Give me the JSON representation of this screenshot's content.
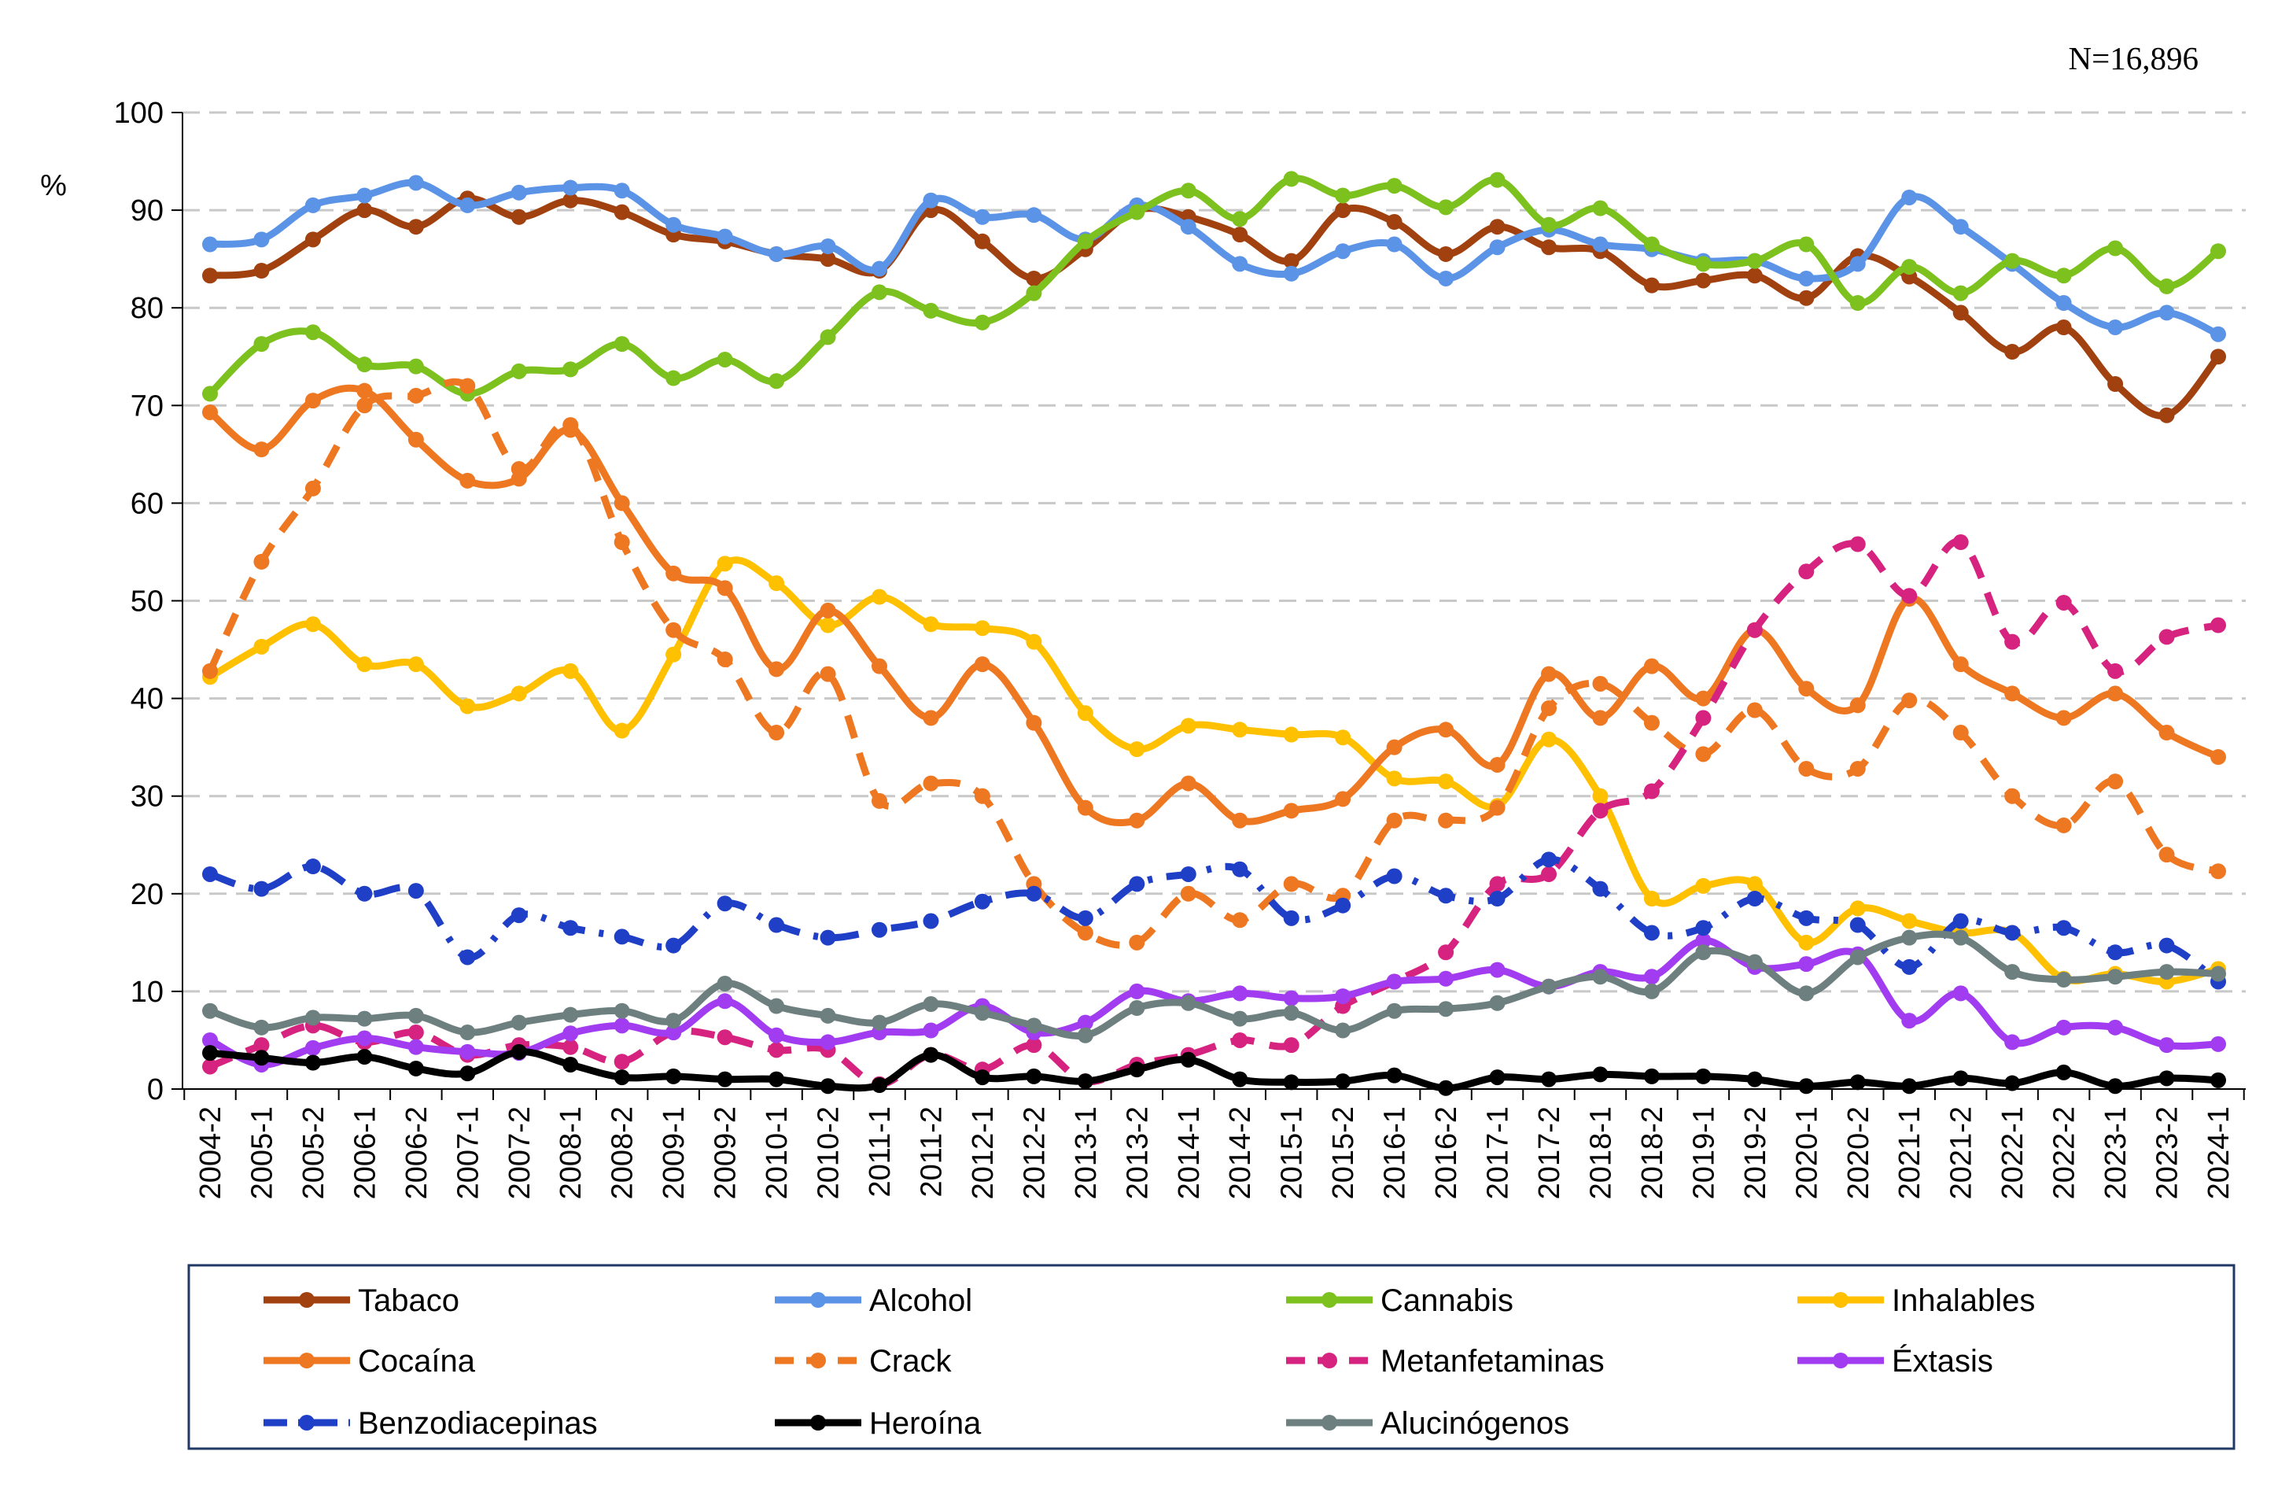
{
  "chart_data": {
    "type": "line",
    "note": "N=16,896",
    "ylabel": "%",
    "ylim": [
      0,
      100
    ],
    "yticks": [
      0,
      10,
      20,
      30,
      40,
      50,
      60,
      70,
      80,
      90,
      100
    ],
    "grid": "horizontal dashed",
    "legend_position": "bottom",
    "categories": [
      "2004-2",
      "2005-1",
      "2005-2",
      "2006-1",
      "2006-2",
      "2007-1",
      "2007-2",
      "2008-1",
      "2008-2",
      "2009-1",
      "2009-2",
      "2010-1",
      "2010-2",
      "2011-1",
      "2011-2",
      "2012-1",
      "2012-2",
      "2013-1",
      "2013-2",
      "2014-1",
      "2014-2",
      "2015-1",
      "2015-2",
      "2016-1",
      "2016-2",
      "2017-1",
      "2017-2",
      "2018-1",
      "2018-2",
      "2019-1",
      "2019-2",
      "2020-1",
      "2020-2",
      "2021-1",
      "2021-2",
      "2022-1",
      "2022-2",
      "2023-1",
      "2023-2",
      "2024-1"
    ],
    "series": [
      {
        "name": "Tabaco",
        "color": "#A0410F",
        "dash": "solid",
        "values": [
          83.3,
          83.8,
          87,
          90,
          88.3,
          91.2,
          89.3,
          91,
          89.8,
          87.5,
          86.8,
          85.5,
          85,
          83.8,
          90,
          86.8,
          83,
          86,
          90,
          89.3,
          87.5,
          84.8,
          90,
          88.8,
          85.5,
          88.3,
          86.2,
          85.8,
          82.3,
          82.8,
          83.3,
          81,
          85.3,
          83.2,
          79.5,
          75.5,
          78,
          72.2,
          69,
          75
        ]
      },
      {
        "name": "Alcohol",
        "color": "#5B93E6",
        "dash": "solid",
        "values": [
          86.5,
          87,
          90.5,
          91.5,
          92.8,
          90.5,
          91.8,
          92.3,
          92,
          88.5,
          87.3,
          85.5,
          86.3,
          84,
          91,
          89.3,
          89.5,
          87,
          90.5,
          88.3,
          84.5,
          83.5,
          85.8,
          86.5,
          83,
          86.2,
          88,
          86.5,
          86,
          84.8,
          84.8,
          83,
          84.5,
          91.3,
          88.3,
          84.5,
          80.5,
          78,
          79.5,
          77.3
        ]
      },
      {
        "name": "Cannabis",
        "color": "#7CC11E",
        "dash": "solid",
        "values": [
          71.2,
          76.3,
          77.5,
          74.2,
          74,
          71.2,
          73.5,
          73.7,
          76.3,
          72.8,
          74.7,
          72.5,
          77,
          81.6,
          79.7,
          78.5,
          81.5,
          86.8,
          89.8,
          92,
          89.1,
          93.2,
          91.5,
          92.5,
          90.3,
          93.1,
          88.5,
          90.2,
          86.5,
          84.5,
          84.8,
          86.5,
          80.5,
          84.2,
          81.5,
          84.8,
          83.3,
          86.1,
          82.2,
          85.8
        ]
      },
      {
        "name": "Inhalables",
        "color": "#FFC000",
        "dash": "solid",
        "values": [
          42.2,
          45.3,
          47.6,
          43.5,
          43.5,
          39.2,
          40.5,
          42.8,
          36.7,
          44.5,
          53.8,
          51.8,
          47.5,
          50.4,
          47.6,
          47.2,
          45.8,
          38.5,
          34.8,
          37.2,
          36.8,
          36.3,
          36,
          31.8,
          31.5,
          29,
          35.8,
          30,
          19.5,
          20.8,
          21,
          15,
          18.5,
          17.2,
          16,
          16,
          11.3,
          11.8,
          11,
          12.3
        ]
      },
      {
        "name": "Cocaína",
        "color": "#EE7722",
        "dash": "solid",
        "values": [
          69.3,
          65.5,
          70.5,
          71.5,
          66.5,
          62.3,
          62.5,
          67.5,
          60,
          52.8,
          51.3,
          43,
          49,
          43.3,
          38,
          43.5,
          37.5,
          28.8,
          27.5,
          31.3,
          27.5,
          28.5,
          29.7,
          35,
          36.8,
          33.2,
          42.5,
          38,
          43.3,
          40,
          47,
          41,
          39.3,
          50.2,
          43.5,
          40.5,
          38,
          40.5,
          36.5,
          34
        ]
      },
      {
        "name": "Crack",
        "color": "#EE7722",
        "dash": "dashed",
        "values": [
          42.8,
          54,
          61.5,
          70,
          71,
          72,
          63.5,
          68,
          56,
          47,
          44,
          36.5,
          42.5,
          29.5,
          31.3,
          30,
          21,
          16,
          15,
          20,
          17.3,
          21,
          19.8,
          27.5,
          27.5,
          28.8,
          39,
          41.5,
          37.5,
          34.3,
          38.8,
          32.8,
          32.8,
          39.8,
          36.5,
          30,
          27,
          31.5,
          24,
          22.3
        ]
      },
      {
        "name": "Metanfetaminas",
        "color": "#D6237F",
        "dash": "dashed",
        "values": [
          2.3,
          4.5,
          6.5,
          4.8,
          5.8,
          3.5,
          4.5,
          4.3,
          2.8,
          5.8,
          5.3,
          4,
          4,
          0.5,
          3.5,
          2,
          4.5,
          0.8,
          2.5,
          3.5,
          5,
          4.5,
          8.5,
          11,
          14,
          21,
          22,
          28.5,
          30.5,
          38,
          47,
          53,
          55.8,
          50.5,
          56,
          45.8,
          49.8,
          42.8,
          46.3,
          47.5
        ]
      },
      {
        "name": "Éxtasis",
        "color": "#A23CF0",
        "dash": "solid",
        "values": [
          5,
          2.5,
          4.2,
          5.2,
          4.3,
          3.8,
          3.7,
          5.7,
          6.5,
          5.8,
          9,
          5.5,
          4.8,
          5.8,
          6,
          8.5,
          5.8,
          6.8,
          10,
          9,
          9.8,
          9.3,
          9.5,
          11,
          11.3,
          12.2,
          10.5,
          12,
          11.5,
          15.2,
          12.5,
          12.8,
          13.8,
          7,
          9.8,
          4.8,
          6.3,
          6.3,
          4.5,
          4.6
        ]
      },
      {
        "name": "Benzodiacepinas",
        "color": "#1F3FC6",
        "dash": "dashdot",
        "values": [
          22,
          20.5,
          22.8,
          20,
          20.3,
          13.5,
          17.8,
          16.5,
          15.6,
          14.7,
          19,
          16.8,
          15.5,
          16.3,
          17.2,
          19.2,
          20,
          17.5,
          21,
          22,
          22.5,
          17.5,
          18.8,
          21.8,
          19.8,
          19.5,
          23.5,
          20.5,
          16,
          16.5,
          19.5,
          17.5,
          16.8,
          12.5,
          17.2,
          16,
          16.5,
          14,
          14.7,
          11
        ]
      },
      {
        "name": "Heroína",
        "color": "#000000",
        "dash": "solid",
        "values": [
          3.7,
          3.2,
          2.7,
          3.3,
          2.1,
          1.6,
          3.8,
          2.5,
          1.2,
          1.3,
          1,
          1,
          0.3,
          0.4,
          3.5,
          1.2,
          1.3,
          0.8,
          2,
          3,
          1,
          0.7,
          0.8,
          1.4,
          0.1,
          1.2,
          1,
          1.5,
          1.3,
          1.3,
          1,
          0.3,
          0.7,
          0.3,
          1.1,
          0.6,
          1.7,
          0.3,
          1.1,
          0.9
        ]
      },
      {
        "name": "Alucinógenos",
        "color": "#6E7F80",
        "dash": "solid",
        "values": [
          8,
          6.3,
          7.3,
          7.2,
          7.5,
          5.8,
          6.8,
          7.6,
          8,
          7,
          10.8,
          8.5,
          7.5,
          6.8,
          8.7,
          7.8,
          6.5,
          5.5,
          8.3,
          8.8,
          7.2,
          7.8,
          6,
          8,
          8.2,
          8.8,
          10.5,
          11.5,
          10,
          14,
          13,
          9.8,
          13.5,
          15.5,
          15.5,
          12,
          11.2,
          11.5,
          12,
          11.8
        ]
      }
    ]
  }
}
